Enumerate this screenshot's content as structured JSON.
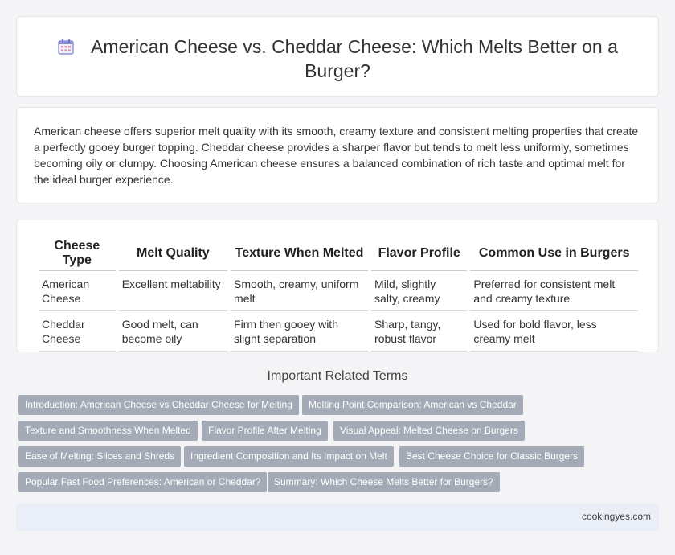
{
  "header": {
    "title": "American Cheese vs. Cheddar Cheese: Which Melts Better on a Burger?",
    "icon": "calendar-icon"
  },
  "intro": {
    "text": "American cheese offers superior melt quality with its smooth, creamy texture and consistent melting properties that create a perfectly gooey burger topping. Cheddar cheese provides a sharper flavor but tends to melt less uniformly, sometimes becoming oily or clumpy. Choosing American cheese ensures a balanced combination of rich taste and optimal melt for the ideal burger experience."
  },
  "table": {
    "headers": [
      "Cheese Type",
      "Melt Quality",
      "Texture When Melted",
      "Flavor Profile",
      "Common Use in Burgers"
    ],
    "rows": [
      [
        "American Cheese",
        "Excellent meltability",
        "Smooth, creamy, uniform melt",
        "Mild, slightly salty, creamy",
        "Preferred for consistent melt and creamy texture"
      ],
      [
        "Cheddar Cheese",
        "Good melt, can become oily",
        "Firm then gooey with slight separation",
        "Sharp, tangy, robust flavor",
        "Used for bold flavor, less creamy melt"
      ]
    ]
  },
  "related": {
    "title": "Important Related Terms",
    "tags": [
      "Introduction: American Cheese vs Cheddar Cheese for Melting",
      "Melting Point Comparison: American vs Cheddar",
      "Texture and Smoothness When Melted",
      "Flavor Profile After Melting",
      "Visual Appeal: Melted Cheese on Burgers",
      "Ease of Melting: Slices and Shreds",
      "Ingredient Composition and Its Impact on Melt",
      "Best Cheese Choice for Classic Burgers",
      "Popular Fast Food Preferences: American or Cheddar?",
      "Summary: Which Cheese Melts Better for Burgers?"
    ]
  },
  "footer": {
    "site": "cookingyes.com"
  }
}
